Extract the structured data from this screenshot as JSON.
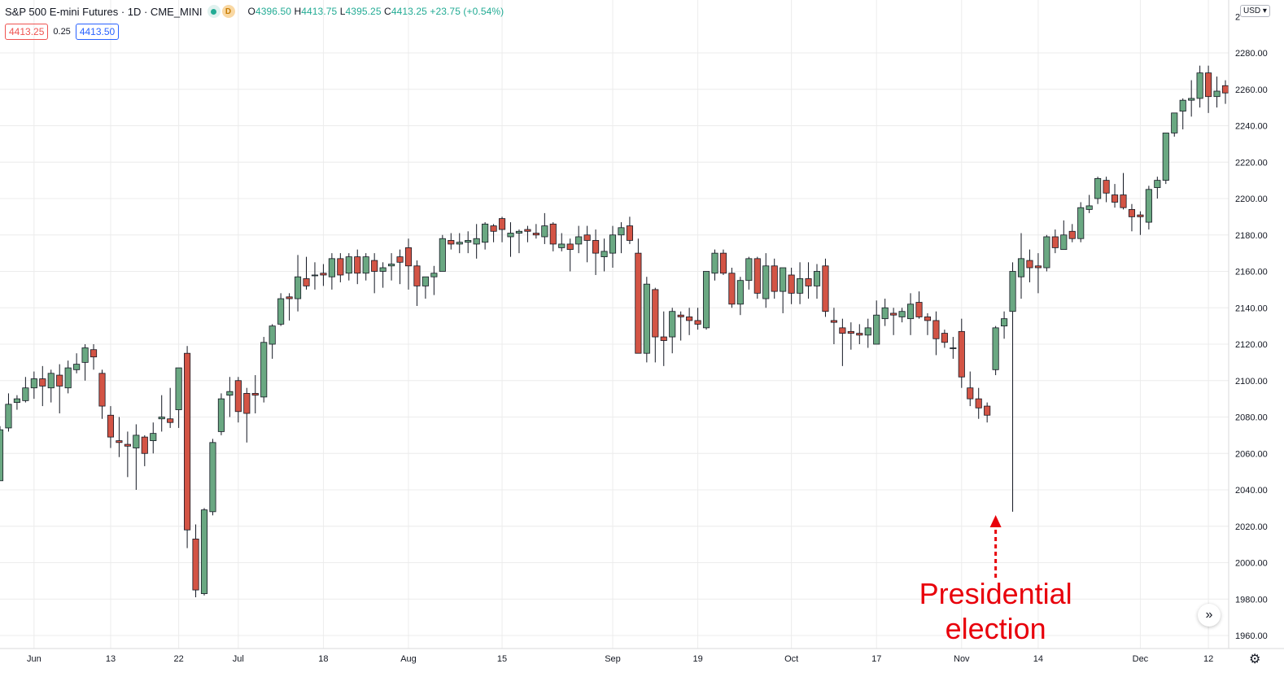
{
  "header": {
    "symbol_title": "S&P 500 E-mini Futures · 1D · CME_MINI",
    "badge_d": "D",
    "ohlc": {
      "open_label": "O",
      "open": "4396.50",
      "high_label": "H",
      "high": "4413.75",
      "low_label": "L",
      "low": "4395.25",
      "close_label": "C",
      "close": "4413.25",
      "change": "+23.75 (+0.54%)"
    },
    "bid": "4413.25",
    "spread": "0.25",
    "ask": "4413.50",
    "currency": "USD"
  },
  "annotation": {
    "line1": "Presidential",
    "line2": "election",
    "color": "#e8000b"
  },
  "colors": {
    "up": "#6aa882",
    "down": "#d35445",
    "wick": "#131722",
    "grid": "#ececec"
  },
  "chart_data": {
    "type": "candlestick",
    "y_axis_ticks": [
      1960,
      1980,
      2000,
      2020,
      2040,
      2060,
      2080,
      2100,
      2120,
      2140,
      2160,
      2180,
      2200,
      2220,
      2240,
      2260,
      2280
    ],
    "y_axis_top_label_partial": "2",
    "ylim": [
      1952,
      2297
    ],
    "x_axis_labels": [
      "Jun",
      "13",
      "22",
      "Jul",
      "18",
      "Aug",
      "15",
      "Sep",
      "19",
      "Oct",
      "17",
      "Nov",
      "14",
      "Dec",
      "12"
    ],
    "candles": [
      [
        2045,
        2075,
        2045,
        2073
      ],
      [
        2074,
        2093,
        2072,
        2087
      ],
      [
        2088,
        2092,
        2084,
        2090
      ],
      [
        2089,
        2102,
        2088,
        2096
      ],
      [
        2096,
        2105,
        2090,
        2101
      ],
      [
        2101,
        2108,
        2086,
        2097
      ],
      [
        2096,
        2106,
        2088,
        2104
      ],
      [
        2103,
        2109,
        2082,
        2097
      ],
      [
        2096,
        2111,
        2093,
        2107
      ],
      [
        2106,
        2115,
        2104,
        2109
      ],
      [
        2110,
        2120,
        2100,
        2118
      ],
      [
        2117,
        2120,
        2106,
        2113
      ],
      [
        2104,
        2106,
        2079,
        2086
      ],
      [
        2081,
        2086,
        2063,
        2069
      ],
      [
        2067,
        2080,
        2058,
        2066
      ],
      [
        2065,
        2072,
        2047,
        2064
      ],
      [
        2063,
        2076,
        2040,
        2070
      ],
      [
        2069,
        2070,
        2053,
        2060
      ],
      [
        2067,
        2077,
        2060,
        2071
      ],
      [
        2079,
        2092,
        2072,
        2080
      ],
      [
        2079,
        2096,
        2074,
        2077
      ],
      [
        2084,
        2107,
        2074,
        2107
      ],
      [
        2115,
        2119,
        2008,
        2018
      ],
      [
        2013,
        2021,
        1981,
        1985
      ],
      [
        1983,
        2030,
        1982,
        2029
      ],
      [
        2028,
        2068,
        2026,
        2066
      ],
      [
        2072,
        2093,
        2070,
        2090
      ],
      [
        2092,
        2102,
        2080,
        2094
      ],
      [
        2100,
        2102,
        2077,
        2083
      ],
      [
        2093,
        2096,
        2066,
        2082
      ],
      [
        2093,
        2103,
        2082,
        2092
      ],
      [
        2091,
        2124,
        2088,
        2121
      ],
      [
        2120,
        2131,
        2112,
        2130
      ],
      [
        2131,
        2148,
        2130,
        2145
      ],
      [
        2146,
        2148,
        2133,
        2145
      ],
      [
        2145,
        2169,
        2138,
        2157
      ],
      [
        2156,
        2168,
        2150,
        2152
      ],
      [
        2158,
        2165,
        2150,
        2158
      ],
      [
        2159,
        2164,
        2152,
        2158
      ],
      [
        2157,
        2170,
        2150,
        2167
      ],
      [
        2167,
        2170,
        2154,
        2158
      ],
      [
        2159,
        2170,
        2155,
        2168
      ],
      [
        2168,
        2172,
        2153,
        2159
      ],
      [
        2159,
        2170,
        2155,
        2168
      ],
      [
        2166,
        2170,
        2148,
        2160
      ],
      [
        2160,
        2165,
        2151,
        2162
      ],
      [
        2163,
        2170,
        2155,
        2164
      ],
      [
        2168,
        2172,
        2153,
        2165
      ],
      [
        2173,
        2178,
        2150,
        2163
      ],
      [
        2163,
        2166,
        2141,
        2152
      ],
      [
        2152,
        2157,
        2145,
        2157
      ],
      [
        2157,
        2163,
        2147,
        2159
      ],
      [
        2160,
        2180,
        2160,
        2178
      ],
      [
        2177,
        2181,
        2172,
        2175
      ],
      [
        2175,
        2181,
        2170,
        2176
      ],
      [
        2176,
        2182,
        2170,
        2177
      ],
      [
        2175,
        2186,
        2167,
        2178
      ],
      [
        2176,
        2187,
        2172,
        2186
      ],
      [
        2185,
        2186,
        2176,
        2182
      ],
      [
        2189,
        2190,
        2176,
        2183
      ],
      [
        2179,
        2187,
        2168,
        2181
      ],
      [
        2181,
        2183,
        2170,
        2182
      ],
      [
        2183,
        2185,
        2176,
        2182
      ],
      [
        2181,
        2186,
        2178,
        2180
      ],
      [
        2179,
        2192,
        2175,
        2185
      ],
      [
        2186,
        2187,
        2171,
        2175
      ],
      [
        2173,
        2181,
        2171,
        2175
      ],
      [
        2175,
        2178,
        2160,
        2172
      ],
      [
        2175,
        2185,
        2170,
        2179
      ],
      [
        2180,
        2185,
        2165,
        2177
      ],
      [
        2177,
        2183,
        2158,
        2170
      ],
      [
        2168,
        2178,
        2160,
        2171
      ],
      [
        2170,
        2185,
        2162,
        2180
      ],
      [
        2180,
        2187,
        2170,
        2184
      ],
      [
        2185,
        2190,
        2175,
        2177
      ],
      [
        2170,
        2178,
        2115,
        2115
      ],
      [
        2115,
        2157,
        2110,
        2153
      ],
      [
        2150,
        2151,
        2110,
        2124
      ],
      [
        2124,
        2138,
        2108,
        2122
      ],
      [
        2124,
        2140,
        2115,
        2138
      ],
      [
        2136,
        2138,
        2122,
        2135
      ],
      [
        2135,
        2140,
        2125,
        2133
      ],
      [
        2133,
        2140,
        2128,
        2131
      ],
      [
        2129,
        2160,
        2128,
        2160
      ],
      [
        2159,
        2172,
        2155,
        2170
      ],
      [
        2170,
        2172,
        2158,
        2159
      ],
      [
        2159,
        2162,
        2140,
        2142
      ],
      [
        2142,
        2157,
        2136,
        2155
      ],
      [
        2155,
        2168,
        2150,
        2167
      ],
      [
        2167,
        2168,
        2145,
        2148
      ],
      [
        2145,
        2170,
        2140,
        2163
      ],
      [
        2163,
        2167,
        2145,
        2149
      ],
      [
        2149,
        2160,
        2137,
        2162
      ],
      [
        2158,
        2162,
        2142,
        2148
      ],
      [
        2148,
        2165,
        2142,
        2156
      ],
      [
        2156,
        2165,
        2145,
        2152
      ],
      [
        2152,
        2164,
        2145,
        2160
      ],
      [
        2163,
        2167,
        2135,
        2138
      ],
      [
        2133,
        2140,
        2120,
        2132
      ],
      [
        2129,
        2134,
        2108,
        2126
      ],
      [
        2127,
        2132,
        2117,
        2126
      ],
      [
        2126,
        2131,
        2120,
        2125
      ],
      [
        2125,
        2134,
        2118,
        2129
      ],
      [
        2120,
        2144,
        2120,
        2136
      ],
      [
        2134,
        2145,
        2130,
        2140
      ],
      [
        2137,
        2140,
        2125,
        2136
      ],
      [
        2135,
        2140,
        2132,
        2138
      ],
      [
        2134,
        2148,
        2125,
        2142
      ],
      [
        2143,
        2149,
        2134,
        2135
      ],
      [
        2135,
        2137,
        2125,
        2133
      ],
      [
        2133,
        2138,
        2114,
        2123
      ],
      [
        2126,
        2128,
        2118,
        2121
      ],
      [
        2118,
        2124,
        2112,
        2118
      ],
      [
        2127,
        2134,
        2096,
        2102
      ],
      [
        2096,
        2105,
        2086,
        2090
      ],
      [
        2090,
        2096,
        2079,
        2085
      ],
      [
        2086,
        2088,
        2077,
        2081
      ],
      [
        2106,
        2130,
        2103,
        2129
      ],
      [
        2130,
        2138,
        2123,
        2134
      ],
      [
        2138,
        2165,
        2028,
        2160
      ],
      [
        2157,
        2181,
        2145,
        2167
      ],
      [
        2166,
        2172,
        2154,
        2162
      ],
      [
        2163,
        2170,
        2148,
        2162
      ],
      [
        2162,
        2180,
        2160,
        2179
      ],
      [
        2179,
        2183,
        2170,
        2173
      ],
      [
        2172,
        2188,
        2172,
        2180
      ],
      [
        2182,
        2186,
        2176,
        2178
      ],
      [
        2178,
        2198,
        2176,
        2195
      ],
      [
        2194,
        2202,
        2192,
        2196
      ],
      [
        2200,
        2212,
        2197,
        2211
      ],
      [
        2210,
        2212,
        2198,
        2203
      ],
      [
        2202,
        2208,
        2195,
        2198
      ],
      [
        2202,
        2214,
        2194,
        2195
      ],
      [
        2194,
        2197,
        2182,
        2190
      ],
      [
        2191,
        2193,
        2180,
        2190
      ],
      [
        2187,
        2207,
        2183,
        2205
      ],
      [
        2206,
        2212,
        2200,
        2210
      ],
      [
        2210,
        2236,
        2208,
        2236
      ],
      [
        2236,
        2247,
        2234,
        2247
      ],
      [
        2248,
        2255,
        2238,
        2254
      ],
      [
        2254,
        2265,
        2245,
        2255
      ],
      [
        2255,
        2273,
        2250,
        2269
      ],
      [
        2269,
        2273,
        2247,
        2256
      ],
      [
        2256,
        2267,
        2250,
        2259
      ],
      [
        2262,
        2265,
        2252,
        2258
      ]
    ],
    "annotation_x_index": 117
  }
}
